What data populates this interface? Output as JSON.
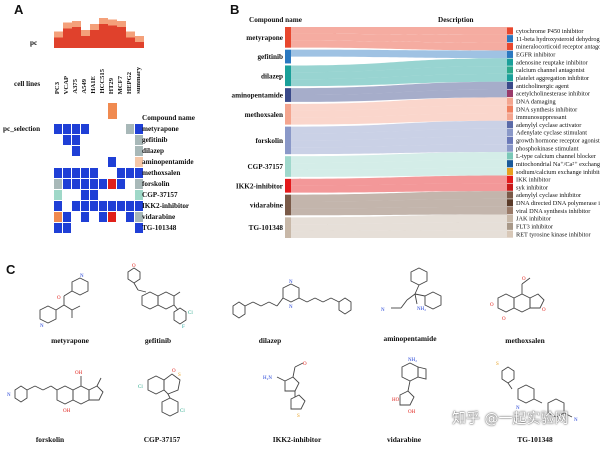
{
  "panels": {
    "a": "A",
    "b": "B",
    "c": "C"
  },
  "panel_a": {
    "pc_label": "pc",
    "cell_lines_label": "cell lines",
    "cell_lines": [
      "PC3",
      "VCAP",
      "A375",
      "A549",
      "HA1E",
      "HCC515",
      "HT29",
      "MCF7",
      "HEPG2",
      "summary"
    ],
    "pc_bars": [
      0.55,
      0.85,
      0.9,
      0.6,
      0.8,
      1.0,
      0.95,
      0.9,
      0.55,
      0.4
    ],
    "pc_selection_label": "pc_selection",
    "pc_selection_bar_index": 6,
    "compound_name_header": "Compound name",
    "compounds": [
      "metyrapone",
      "gefitinib",
      "dilazep",
      "aminopentamide",
      "methoxsalen",
      "forskolin",
      "CGP-37157",
      "IKK2-inhibitor",
      "vidarabine",
      "TG-101348"
    ],
    "heatmap": [
      [
        "b",
        "b",
        "b",
        "b",
        "",
        "",
        "",
        "",
        "g",
        "b"
      ],
      [
        "",
        "b",
        "b",
        "",
        "",
        "",
        "",
        "",
        "",
        "g"
      ],
      [
        "",
        "",
        "b",
        "",
        "",
        "",
        "",
        "",
        "",
        "g"
      ],
      [
        "",
        "",
        "",
        "",
        "",
        "",
        "b",
        "",
        "",
        "p"
      ],
      [
        "b",
        "b",
        "b",
        "b",
        "b",
        "",
        "",
        "b",
        "b",
        "b"
      ],
      [
        "g",
        "b",
        "b",
        "b",
        "b",
        "b",
        "r",
        "b",
        "",
        "g"
      ],
      [
        "t",
        "",
        "",
        "b",
        "b",
        "",
        "",
        "",
        "",
        "t"
      ],
      [
        "b",
        "",
        "b",
        "b",
        "b",
        "b",
        "b",
        "b",
        "b",
        "b"
      ],
      [
        "o",
        "b",
        "",
        "b",
        "",
        "b",
        "r",
        "",
        "b",
        "g"
      ],
      [
        "b",
        "b",
        "",
        "",
        "",
        "",
        "",
        "",
        "",
        "b"
      ]
    ],
    "colors": {
      "b": "#1f3fd6",
      "g": "#a8b8b8",
      "r": "#e0201a",
      "o": "#f08a50",
      "p": "#f5c7a8",
      "t": "#9fd8c8"
    }
  },
  "panel_b": {
    "left_header": "Compound name",
    "right_header": "Description",
    "left_nodes": [
      {
        "name": "metyrapone",
        "color": "#e8472e"
      },
      {
        "name": "gefitinib",
        "color": "#2a78c0"
      },
      {
        "name": "dilazep",
        "color": "#1aa09a"
      },
      {
        "name": "aminopentamide",
        "color": "#3a4a8a"
      },
      {
        "name": "methoxsalen",
        "color": "#f4a58f"
      },
      {
        "name": "forskolin",
        "color": "#8a98c8"
      },
      {
        "name": "CGP-37157",
        "color": "#9fd8cc"
      },
      {
        "name": "IKK2-inhibitor",
        "color": "#e41a1c"
      },
      {
        "name": "vidarabine",
        "color": "#7a5a48"
      },
      {
        "name": "TG-101348",
        "color": "#c8b8a8"
      }
    ],
    "descriptions": [
      {
        "text": "cytochrome P450 inhibitor",
        "color": "#e8472e"
      },
      {
        "text": "11-beta hydroxysteroid dehydroger",
        "color": "#2a78c0"
      },
      {
        "text": "mineralocorticoid receptor antagon",
        "color": "#e8472e"
      },
      {
        "text": "EGFR inhibitor",
        "color": "#2a78c0"
      },
      {
        "text": "adenosine reuptake inhibitor",
        "color": "#1aa09a"
      },
      {
        "text": "calcium channel antagonist",
        "color": "#2aa88a"
      },
      {
        "text": "platelet aggregation inhibitor",
        "color": "#1aa09a"
      },
      {
        "text": "anticholinergic agent",
        "color": "#3a4a8a"
      },
      {
        "text": "acetylcholinesterase inhibitor",
        "color": "#9a3a6a"
      },
      {
        "text": "DNA damaging",
        "color": "#f4a58f"
      },
      {
        "text": "DNA synthesis inhibitor",
        "color": "#f08060"
      },
      {
        "text": "immunosuppressant",
        "color": "#f4a58f"
      },
      {
        "text": "adenylyl cyclase activator",
        "color": "#5a6aa8"
      },
      {
        "text": "Adenylate cyclase stimulant",
        "color": "#8a98c8"
      },
      {
        "text": "growth hormone receptor agonist",
        "color": "#6a78b8"
      },
      {
        "text": "phosphokinase stimulant",
        "color": "#8a98c8"
      },
      {
        "text": "L-type calcium channel blocker",
        "color": "#7ac8b8"
      },
      {
        "text": "mitochondrial Na⁺/Ca²⁺ exchange",
        "color": "#1a5a9a"
      },
      {
        "text": "sodium/calcium exchange inhibitor",
        "color": "#e8a020"
      },
      {
        "text": "IKK inhibitor",
        "color": "#e41a1c"
      },
      {
        "text": "syk inhibitor",
        "color": "#c81a1a"
      },
      {
        "text": "adenylyl cyclase inhibitor",
        "color": "#7a5a48"
      },
      {
        "text": "DNA directed DNA polymerase inhibitor",
        "color": "#5a3a28"
      },
      {
        "text": "viral DNA synthesis inhibitor",
        "color": "#9a7a68"
      },
      {
        "text": "JAK inhibitor",
        "color": "#c8b8a8"
      },
      {
        "text": "FLT3 inhibitor",
        "color": "#a89888"
      },
      {
        "text": "RET tyrosine kinase inhibitor",
        "color": "#d8c8b8"
      }
    ]
  },
  "panel_c": {
    "structures": [
      "metyrapone",
      "gefitinib",
      "dilazep",
      "aminopentamide",
      "methoxsalen",
      "forskolin",
      "CGP-37157",
      "IKK2-inhibitor",
      "vidarabine",
      "TG-101348"
    ]
  },
  "watermark": {
    "text": "知乎 @一起实验网"
  }
}
